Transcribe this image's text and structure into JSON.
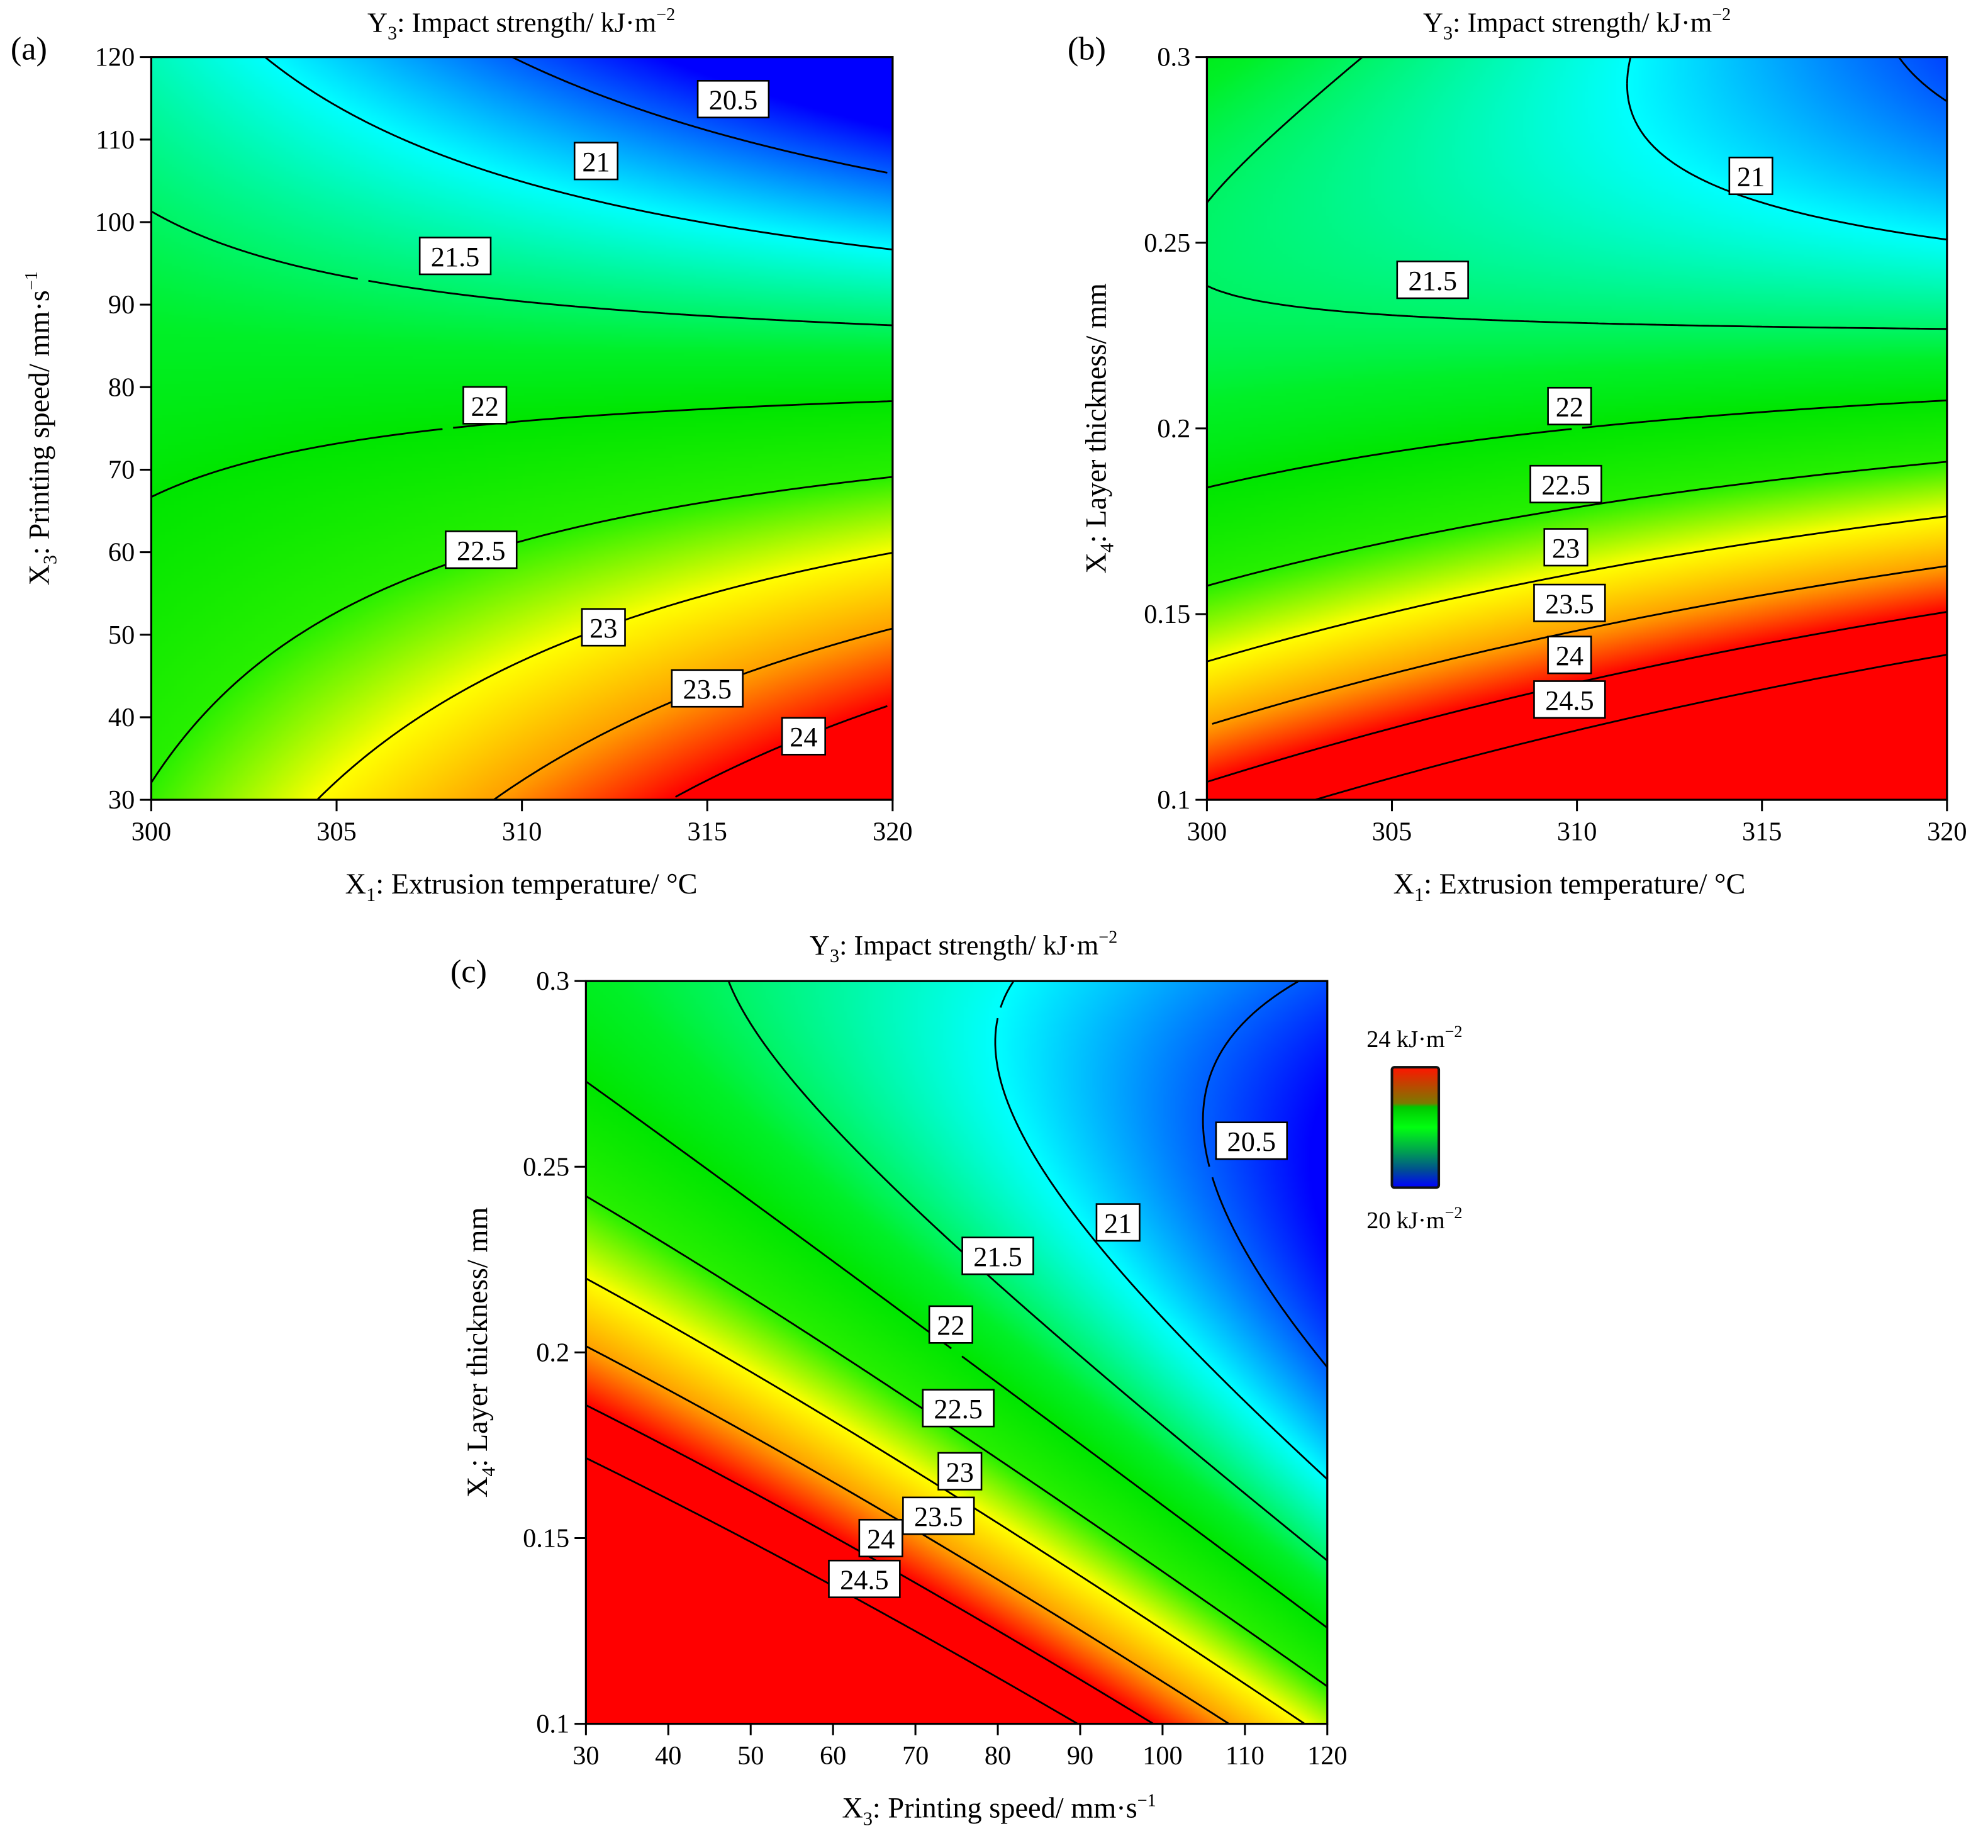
{
  "panel_letters": [
    "(a)",
    "(b)",
    "(c)"
  ],
  "legend": {
    "high_value": "24",
    "high_unit": " kJ·m",
    "high_sup": "−2",
    "low_value": "20",
    "low_unit": " kJ·m",
    "low_sup": "−2",
    "colors": [
      "#ff1400",
      "#7a7a00",
      "#00c800",
      "#00ff10",
      "#00a050",
      "#005090",
      "#0000ff"
    ]
  },
  "colormap": {
    "levels": [
      20.2,
      21.0,
      21.7,
      22.0,
      22.5,
      23.0,
      23.5,
      24.0
    ],
    "colors": [
      "#0000ff",
      "#00ffff",
      "#00f028",
      "#00e600",
      "#28f000",
      "#ffff00",
      "#ffa000",
      "#ff0000"
    ]
  },
  "chart_data": [
    {
      "type": "heatmap",
      "subtype": "contour",
      "title": {
        "sym": "Y",
        "sub": "3",
        "text": ": Impact strength/ kJ·m",
        "sup": "−2"
      },
      "xlabel": {
        "sym": "X",
        "sub": "1",
        "text": ": Extrusion temperature/ °C",
        "sup": ""
      },
      "ylabel": {
        "sym": "X",
        "sub": "3",
        "text": ": Printing speed/ mm·s",
        "sup": "−1"
      },
      "xlim": [
        300,
        320
      ],
      "ylim": [
        30,
        120
      ],
      "x_ticks": [
        "300",
        "305",
        "310",
        "315",
        "320"
      ],
      "y_ticks": [
        "30",
        "40",
        "50",
        "60",
        "70",
        "80",
        "90",
        "100",
        "110",
        "120"
      ],
      "response_surface": {
        "b0": 22.03,
        "b1": 0.15,
        "b2": -1.55,
        "b12": -0.9,
        "b11": 0.0,
        "b22": 0.0
      },
      "contour_levels": [
        20.5,
        21,
        21.5,
        22,
        22.5,
        23,
        23.5,
        24
      ],
      "contour_labels": [
        {
          "text": "20.5",
          "x": 315.7,
          "y": 114.9
        },
        {
          "text": "21",
          "x": 312.0,
          "y": 107.4
        },
        {
          "text": "21.5",
          "x": 308.2,
          "y": 95.9
        },
        {
          "text": "22",
          "x": 309.0,
          "y": 77.8
        },
        {
          "text": "22.5",
          "x": 308.9,
          "y": 60.3
        },
        {
          "text": "23",
          "x": 312.2,
          "y": 50.9
        },
        {
          "text": "23.5",
          "x": 315.0,
          "y": 43.5
        },
        {
          "text": "24",
          "x": 317.6,
          "y": 37.7
        }
      ]
    },
    {
      "type": "heatmap",
      "subtype": "contour",
      "title": {
        "sym": "Y",
        "sub": "3",
        "text": ": Impact strength/ kJ·m",
        "sup": "−2"
      },
      "xlabel": {
        "sym": "X",
        "sub": "1",
        "text": ": Extrusion temperature/ °C",
        "sup": ""
      },
      "ylabel": {
        "sym": "X",
        "sub": "4",
        "text": ": Layer thickness/ mm",
        "sup": ""
      },
      "xlim": [
        300,
        320
      ],
      "ylim": [
        0.1,
        0.3
      ],
      "x_ticks": [
        "300",
        "305",
        "310",
        "315",
        "320"
      ],
      "y_ticks": [
        "0.1",
        "0.15",
        "0.2",
        "0.25",
        "0.3"
      ],
      "response_surface": {
        "b0": 22.0,
        "b1": 0.22,
        "b2": -2.1,
        "b12": -0.91,
        "b11": 0.0,
        "b22": 1.2
      },
      "contour_levels": [
        20.5,
        21,
        21.5,
        22,
        22.5,
        23,
        23.5,
        24,
        24.5
      ],
      "contour_labels": [
        {
          "text": "21",
          "x": 314.7,
          "y": 0.268
        },
        {
          "text": "21.5",
          "x": 306.1,
          "y": 0.24
        },
        {
          "text": "22",
          "x": 309.8,
          "y": 0.206
        },
        {
          "text": "22.5",
          "x": 309.7,
          "y": 0.185
        },
        {
          "text": "23",
          "x": 309.7,
          "y": 0.168
        },
        {
          "text": "23.5",
          "x": 309.8,
          "y": 0.153
        },
        {
          "text": "24",
          "x": 309.8,
          "y": 0.139
        },
        {
          "text": "24.5",
          "x": 309.8,
          "y": 0.127
        }
      ]
    },
    {
      "type": "heatmap",
      "subtype": "contour",
      "title": {
        "sym": "Y",
        "sub": "3",
        "text": ": Impact strength/ kJ·m",
        "sup": "−2"
      },
      "xlabel": {
        "sym": "X",
        "sub": "3",
        "text": ": Printing speed/ mm·s",
        "sup": "−1"
      },
      "ylabel": {
        "sym": "X",
        "sub": "4",
        "text": ": Layer thickness/ mm",
        "sup": ""
      },
      "xlim": [
        30,
        120
      ],
      "ylim": [
        0.1,
        0.3
      ],
      "x_ticks": [
        "30",
        "40",
        "50",
        "60",
        "70",
        "80",
        "90",
        "100",
        "110",
        "120"
      ],
      "y_ticks": [
        "0.1",
        "0.15",
        "0.2",
        "0.25",
        "0.3"
      ],
      "response_surface": {
        "b0": 22.0,
        "b1": -1.55,
        "b2": -2.1,
        "b12": 0.9,
        "b11": 0.0,
        "b22": 1.2
      },
      "contour_levels": [
        20.5,
        21,
        21.5,
        22,
        22.5,
        23,
        23.5,
        24,
        24.5
      ],
      "contour_labels": [
        {
          "text": "20.5",
          "x": 110.8,
          "y": 0.257
        },
        {
          "text": "21",
          "x": 94.6,
          "y": 0.235
        },
        {
          "text": "21.5",
          "x": 80.0,
          "y": 0.226
        },
        {
          "text": "22",
          "x": 74.3,
          "y": 0.2075
        },
        {
          "text": "22.5",
          "x": 75.2,
          "y": 0.185
        },
        {
          "text": "23",
          "x": 75.4,
          "y": 0.168
        },
        {
          "text": "23.5",
          "x": 72.8,
          "y": 0.156
        },
        {
          "text": "24",
          "x": 65.8,
          "y": 0.15
        },
        {
          "text": "24.5",
          "x": 63.8,
          "y": 0.139
        }
      ]
    }
  ]
}
